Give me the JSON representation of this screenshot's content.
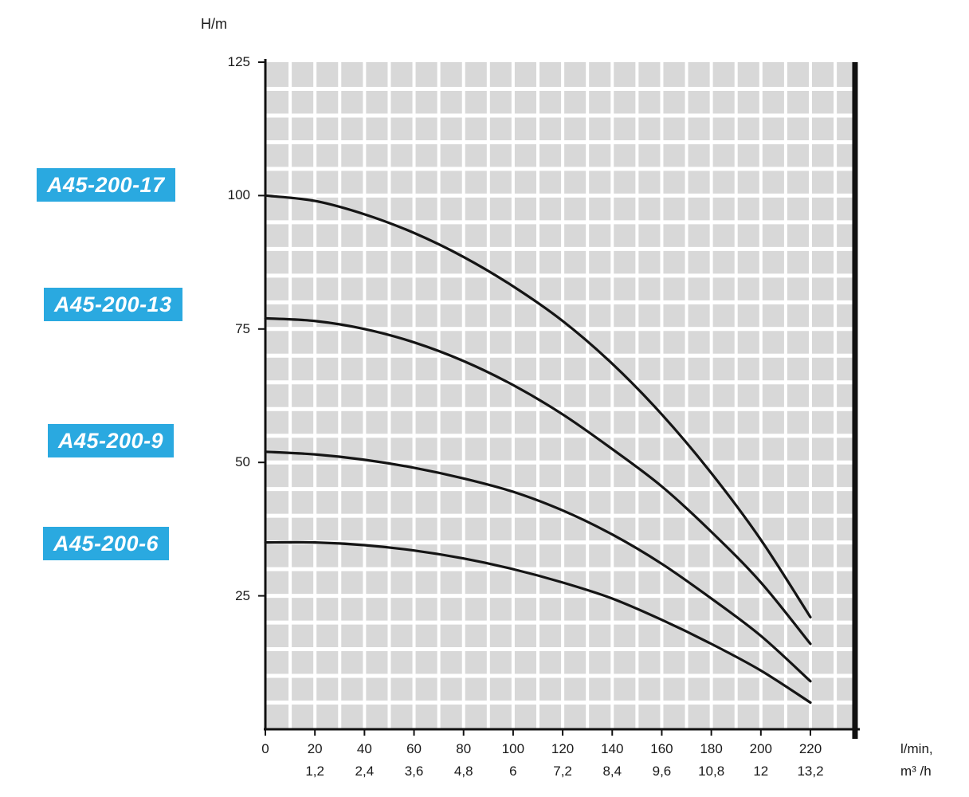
{
  "chart_data": {
    "type": "line",
    "title": "",
    "ylabel": "H/m",
    "xlabel_primary": "l/min,",
    "xlabel_secondary": "m³ /h",
    "xlim": [
      0,
      220
    ],
    "ylim": [
      0,
      125
    ],
    "x_grid_extent": 238,
    "x_minor_step": 10,
    "y_minor_step": 5,
    "grid": {
      "bg": "#d8d8d8",
      "line_color": "#ffffff",
      "on": true
    },
    "axis_color": "#111111",
    "curve_color": "#151515",
    "label_bg": "#2AA9E0",
    "legend_position": "left",
    "y_ticks": [
      25,
      50,
      75,
      100,
      125
    ],
    "x_ticks": [
      {
        "lmin": "0",
        "m3h": ""
      },
      {
        "lmin": "20",
        "m3h": "1,2"
      },
      {
        "lmin": "40",
        "m3h": "2,4"
      },
      {
        "lmin": "60",
        "m3h": "3,6"
      },
      {
        "lmin": "80",
        "m3h": "4,8"
      },
      {
        "lmin": "100",
        "m3h": "6"
      },
      {
        "lmin": "120",
        "m3h": "7,2"
      },
      {
        "lmin": "140",
        "m3h": "8,4"
      },
      {
        "lmin": "160",
        "m3h": "9,6"
      },
      {
        "lmin": "180",
        "m3h": "10,8"
      },
      {
        "lmin": "200",
        "m3h": "12"
      },
      {
        "lmin": "220",
        "m3h": "13,2"
      }
    ],
    "x_values": [
      0,
      20,
      40,
      60,
      80,
      100,
      120,
      140,
      160,
      180,
      200,
      220
    ],
    "series": [
      {
        "name": "A45-200-17",
        "y": [
          100,
          99,
          96.5,
          93,
          88.5,
          83,
          76.5,
          68.5,
          59,
          48,
          35.5,
          21
        ]
      },
      {
        "name": "A45-200-13",
        "y": [
          77,
          76.5,
          75,
          72.5,
          69,
          64.5,
          59,
          52.5,
          45.5,
          37,
          27.5,
          16
        ]
      },
      {
        "name": "A45-200-9",
        "y": [
          52,
          51.5,
          50.5,
          49,
          47,
          44.5,
          41,
          36.5,
          31,
          24.5,
          17.5,
          9
        ]
      },
      {
        "name": "A45-200-6",
        "y": [
          35,
          35,
          34.5,
          33.5,
          32,
          30,
          27.5,
          24.5,
          20.5,
          16,
          11,
          5
        ]
      }
    ]
  }
}
